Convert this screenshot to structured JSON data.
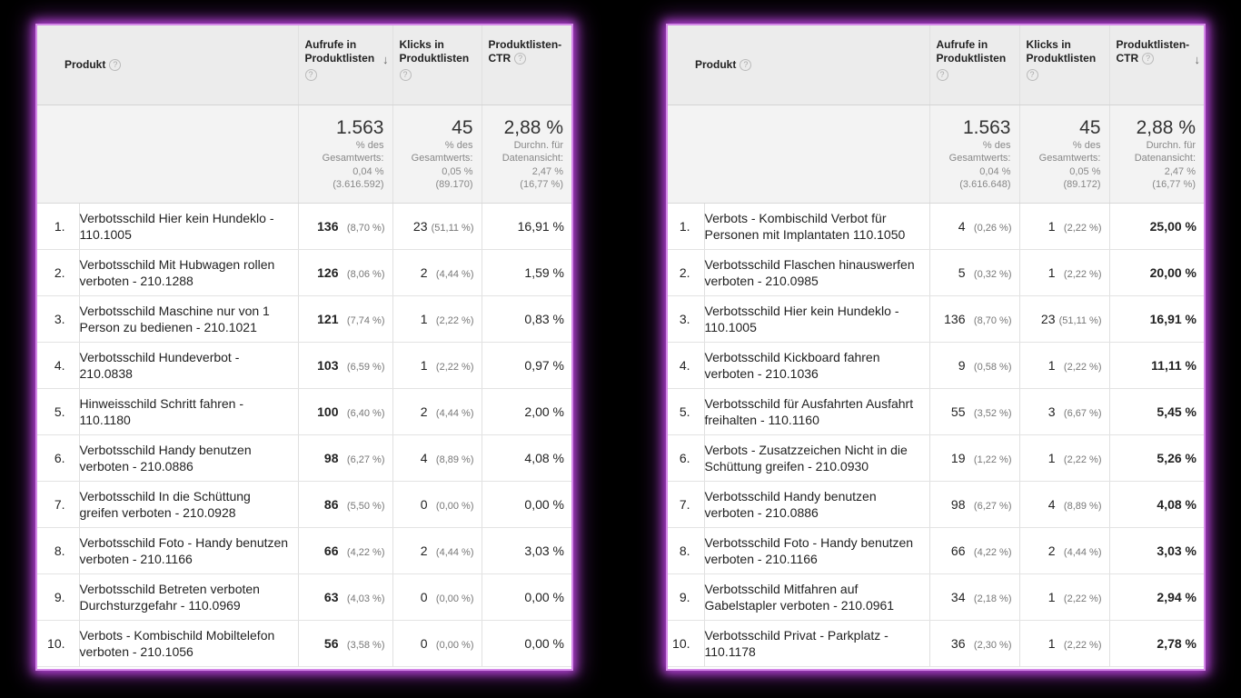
{
  "header": {
    "produkt": "Produkt",
    "aufrufe": "Aufrufe in Produktlisten",
    "klicks": "Klicks in Produktlisten",
    "ctr": "Produktlisten-CTR",
    "help": "?",
    "sort_arrow": "↓"
  },
  "left": {
    "totals": {
      "aufrufe_value": "1.563",
      "aufrufe_sub": "% des\nGesamtwerts:\n0,04 %\n(3.616.592)",
      "klicks_value": "45",
      "klicks_sub": "% des\nGesamtwerts:\n0,05 %\n(89.170)",
      "ctr_value": "2,88 %",
      "ctr_sub": "Durchn. für\nDatenansicht:\n2,47 %\n(16,77 %)"
    },
    "rows": [
      {
        "rank": "1.",
        "name": "Verbotsschild Hier kein Hundeklo - 110.1005",
        "views": "136",
        "views_pct": "(8,70 %)",
        "clicks": "23",
        "clicks_pct": "(51,11 %)",
        "ctr": "16,91 %"
      },
      {
        "rank": "2.",
        "name": "Verbotsschild Mit Hubwagen rollen verboten - 210.1288",
        "views": "126",
        "views_pct": "(8,06 %)",
        "clicks": "2",
        "clicks_pct": "(4,44 %)",
        "ctr": "1,59 %"
      },
      {
        "rank": "3.",
        "name": "Verbotsschild Maschine nur von 1 Person zu bedienen - 210.1021",
        "views": "121",
        "views_pct": "(7,74 %)",
        "clicks": "1",
        "clicks_pct": "(2,22 %)",
        "ctr": "0,83 %"
      },
      {
        "rank": "4.",
        "name": "Verbotsschild Hundeverbot - 210.0838",
        "views": "103",
        "views_pct": "(6,59 %)",
        "clicks": "1",
        "clicks_pct": "(2,22 %)",
        "ctr": "0,97 %"
      },
      {
        "rank": "5.",
        "name": "Hinweisschild Schritt fahren - 110.1180",
        "views": "100",
        "views_pct": "(6,40 %)",
        "clicks": "2",
        "clicks_pct": "(4,44 %)",
        "ctr": "2,00 %"
      },
      {
        "rank": "6.",
        "name": "Verbotsschild Handy benutzen verboten - 210.0886",
        "views": "98",
        "views_pct": "(6,27 %)",
        "clicks": "4",
        "clicks_pct": "(8,89 %)",
        "ctr": "4,08 %"
      },
      {
        "rank": "7.",
        "name": "Verbotsschild In die Schüttung greifen verboten - 210.0928",
        "views": "86",
        "views_pct": "(5,50 %)",
        "clicks": "0",
        "clicks_pct": "(0,00 %)",
        "ctr": "0,00 %"
      },
      {
        "rank": "8.",
        "name": "Verbotsschild Foto - Handy benutzen verboten - 210.1166",
        "views": "66",
        "views_pct": "(4,22 %)",
        "clicks": "2",
        "clicks_pct": "(4,44 %)",
        "ctr": "3,03 %"
      },
      {
        "rank": "9.",
        "name": "Verbotsschild Betreten verboten Durchsturzgefahr - 110.0969",
        "views": "63",
        "views_pct": "(4,03 %)",
        "clicks": "0",
        "clicks_pct": "(0,00 %)",
        "ctr": "0,00 %"
      },
      {
        "rank": "10.",
        "name": "Verbots - Kombischild Mobiltelefon verboten - 210.1056",
        "views": "56",
        "views_pct": "(3,58 %)",
        "clicks": "0",
        "clicks_pct": "(0,00 %)",
        "ctr": "0,00 %"
      }
    ]
  },
  "right": {
    "totals": {
      "aufrufe_value": "1.563",
      "aufrufe_sub": "% des\nGesamtwerts:\n0,04 %\n(3.616.648)",
      "klicks_value": "45",
      "klicks_sub": "% des\nGesamtwerts:\n0,05 %\n(89.172)",
      "ctr_value": "2,88 %",
      "ctr_sub": "Durchn. für\nDatenansicht:\n2,47 %\n(16,77 %)"
    },
    "rows": [
      {
        "rank": "1.",
        "name": "Verbots - Kombischild Verbot für Personen mit Implantaten 110.1050",
        "views": "4",
        "views_pct": "(0,26 %)",
        "clicks": "1",
        "clicks_pct": "(2,22 %)",
        "ctr": "25,00 %"
      },
      {
        "rank": "2.",
        "name": "Verbotsschild Flaschen hinauswerfen verboten - 210.0985",
        "views": "5",
        "views_pct": "(0,32 %)",
        "clicks": "1",
        "clicks_pct": "(2,22 %)",
        "ctr": "20,00 %"
      },
      {
        "rank": "3.",
        "name": "Verbotsschild Hier kein Hundeklo - 110.1005",
        "views": "136",
        "views_pct": "(8,70 %)",
        "clicks": "23",
        "clicks_pct": "(51,11 %)",
        "ctr": "16,91 %"
      },
      {
        "rank": "4.",
        "name": "Verbotsschild Kickboard fahren verboten - 210.1036",
        "views": "9",
        "views_pct": "(0,58 %)",
        "clicks": "1",
        "clicks_pct": "(2,22 %)",
        "ctr": "11,11 %"
      },
      {
        "rank": "5.",
        "name": "Verbotsschild für Ausfahrten Ausfahrt freihalten - 110.1160",
        "views": "55",
        "views_pct": "(3,52 %)",
        "clicks": "3",
        "clicks_pct": "(6,67 %)",
        "ctr": "5,45 %"
      },
      {
        "rank": "6.",
        "name": "Verbots - Zusatzzeichen Nicht in die Schüttung greifen - 210.0930",
        "views": "19",
        "views_pct": "(1,22 %)",
        "clicks": "1",
        "clicks_pct": "(2,22 %)",
        "ctr": "5,26 %"
      },
      {
        "rank": "7.",
        "name": "Verbotsschild Handy benutzen verboten - 210.0886",
        "views": "98",
        "views_pct": "(6,27 %)",
        "clicks": "4",
        "clicks_pct": "(8,89 %)",
        "ctr": "4,08 %"
      },
      {
        "rank": "8.",
        "name": "Verbotsschild Foto - Handy benutzen verboten - 210.1166",
        "views": "66",
        "views_pct": "(4,22 %)",
        "clicks": "2",
        "clicks_pct": "(4,44 %)",
        "ctr": "3,03 %"
      },
      {
        "rank": "9.",
        "name": "Verbotsschild Mitfahren auf Gabelstapler verboten - 210.0961",
        "views": "34",
        "views_pct": "(2,18 %)",
        "clicks": "1",
        "clicks_pct": "(2,22 %)",
        "ctr": "2,94 %"
      },
      {
        "rank": "10.",
        "name": "Verbotsschild Privat - Parkplatz - 110.1178",
        "views": "36",
        "views_pct": "(2,30 %)",
        "clicks": "1",
        "clicks_pct": "(2,22 %)",
        "ctr": "2,78 %"
      }
    ]
  }
}
